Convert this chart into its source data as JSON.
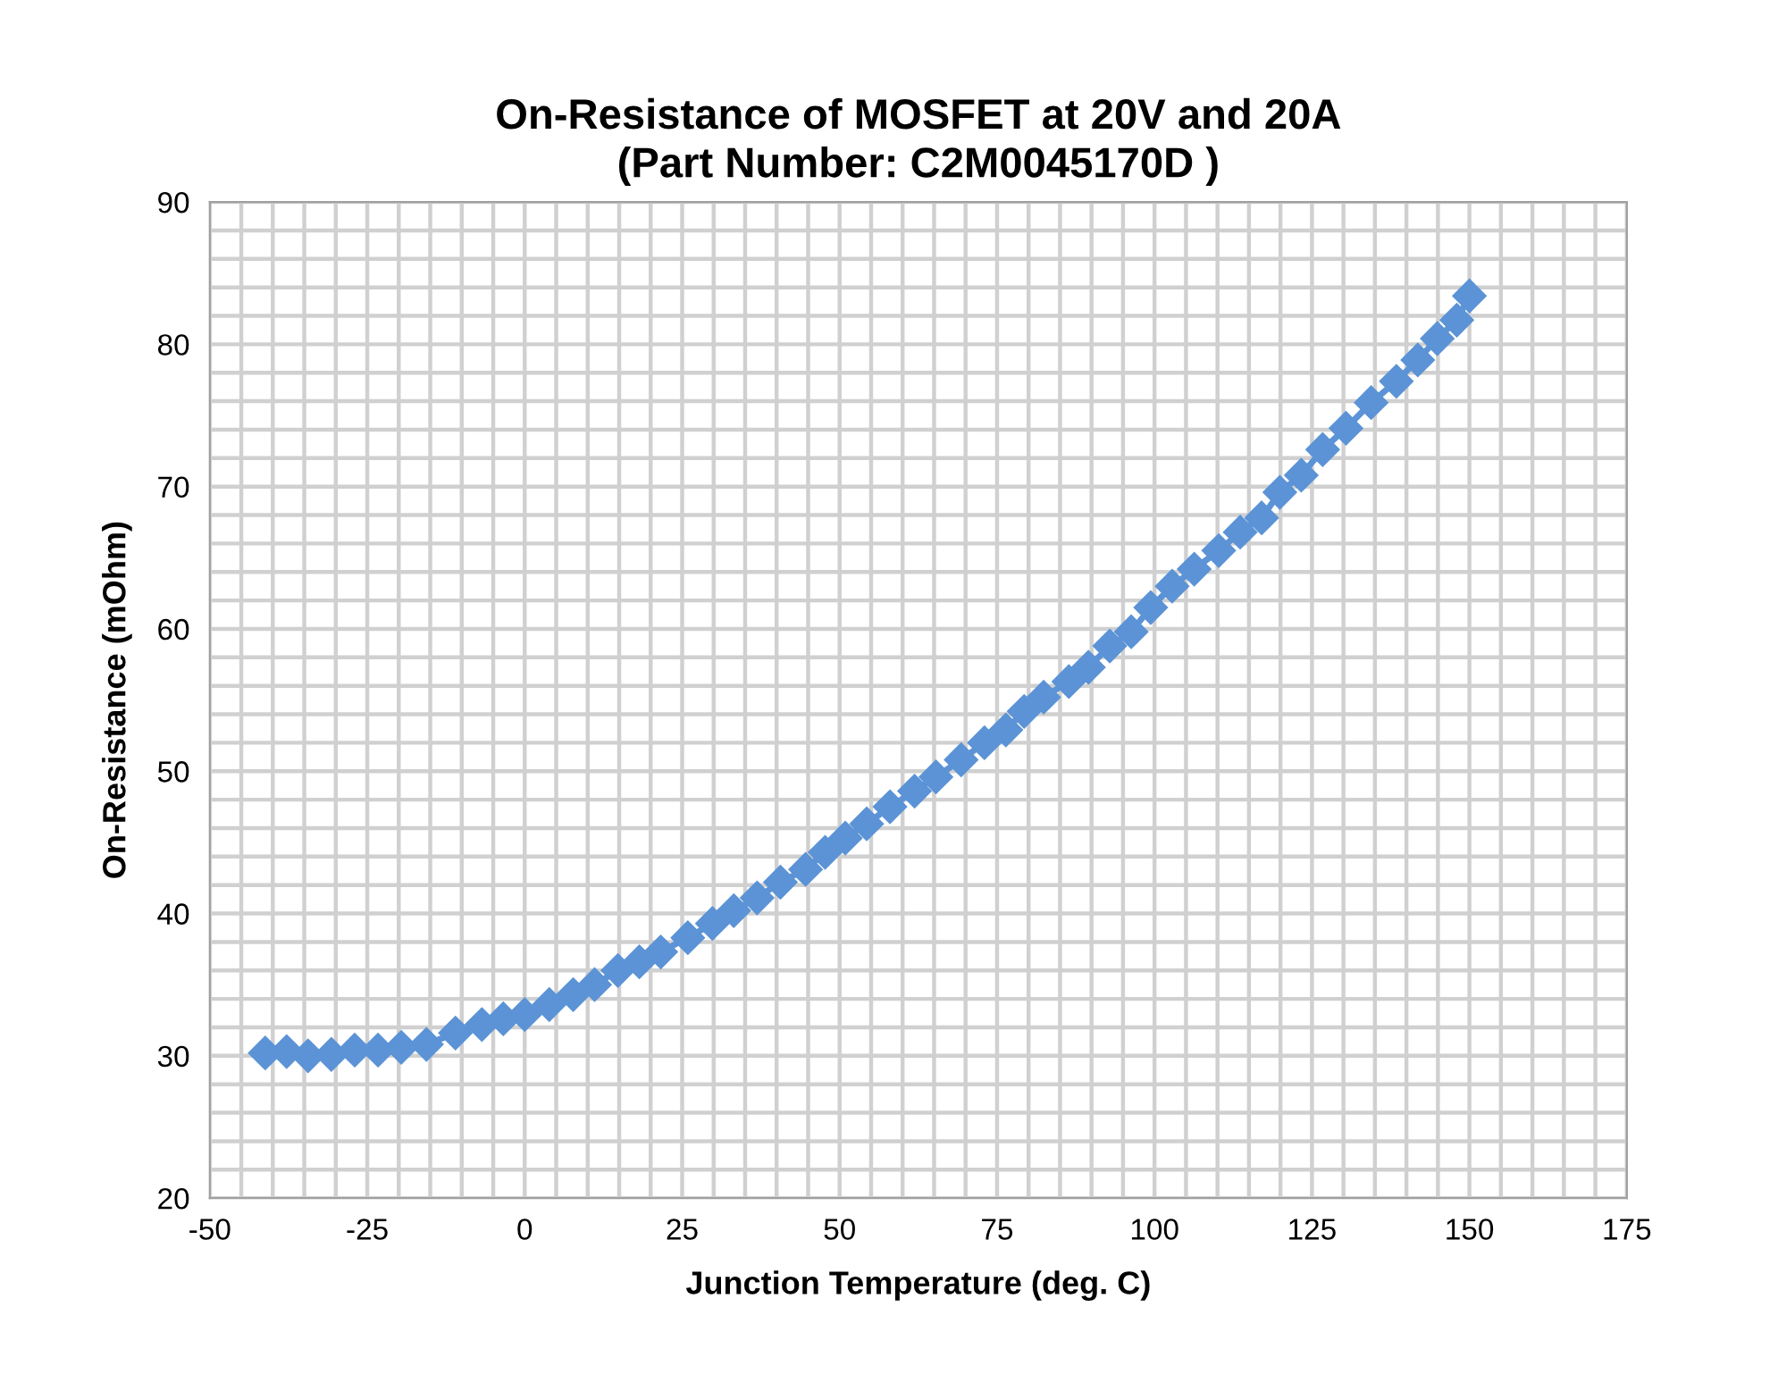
{
  "chart_data": {
    "type": "line",
    "title": "On-Resistance of MOSFET at 20V and 20A\n(Part Number: C2M0045170D )",
    "xlabel": "Junction Temperature (deg. C)",
    "ylabel": "On-Resistance (mOhm)",
    "series": [
      {
        "color": "#5b93d6",
        "x": [
          -41.2,
          -37.8,
          -34.4,
          -30.7,
          -27,
          -23.3,
          -19.6,
          -15.6,
          -11,
          -6.8,
          -3.4,
          0,
          3.9,
          7.7,
          11.1,
          14.8,
          18.2,
          21.6,
          25.9,
          29.8,
          33.2,
          36.9,
          40.6,
          44.6,
          47.7,
          50.9,
          54.3,
          58,
          61.9,
          65.3,
          69.3,
          73,
          76.4,
          79.3,
          82.4,
          86.4,
          89.5,
          92.9,
          96.3,
          99.4,
          102.8,
          106.3,
          110.2,
          113.6,
          117,
          119.9,
          123.3,
          126.7,
          130.4,
          134.4,
          138.4,
          141.8,
          144.9,
          148,
          150
        ],
        "values": [
          30.2,
          30.3,
          30.0,
          30.1,
          30.4,
          30.4,
          30.6,
          30.8,
          31.6,
          32.2,
          32.6,
          32.9,
          33.6,
          34.3,
          35.0,
          36.0,
          36.6,
          37.3,
          38.3,
          39.3,
          40.2,
          41.1,
          42.2,
          43.1,
          44.3,
          45.3,
          46.3,
          47.5,
          48.6,
          49.6,
          50.8,
          52.0,
          52.9,
          54.2,
          55.2,
          56.3,
          57.3,
          58.8,
          59.8,
          61.5,
          63.0,
          64.2,
          65.5,
          66.8,
          67.8,
          69.6,
          70.8,
          72.6,
          74.1,
          75.9,
          77.4,
          78.9,
          80.4,
          81.7,
          83.4
        ]
      }
    ],
    "xlim": [
      -50,
      175
    ],
    "xticks": [
      -50,
      {
        "value": -45,
        "label": null
      },
      {
        "value": -40,
        "label": null
      },
      {
        "value": -35,
        "label": null
      },
      {
        "value": -30,
        "label": null
      },
      -25,
      {
        "value": -20,
        "label": null
      },
      {
        "value": -15,
        "label": null
      },
      {
        "value": -10,
        "label": null
      },
      {
        "value": -5,
        "label": null
      },
      0,
      {
        "value": 5,
        "label": null
      },
      {
        "value": 10,
        "label": null
      },
      {
        "value": 15,
        "label": null
      },
      {
        "value": 20,
        "label": null
      },
      25,
      {
        "value": 30,
        "label": null
      },
      {
        "value": 35,
        "label": null
      },
      {
        "value": 40,
        "label": null
      },
      {
        "value": 45,
        "label": null
      },
      50,
      {
        "value": 55,
        "label": null
      },
      {
        "value": 60,
        "label": null
      },
      {
        "value": 65,
        "label": null
      },
      {
        "value": 70,
        "label": null
      },
      75,
      {
        "value": 80,
        "label": null
      },
      {
        "value": 85,
        "label": null
      },
      {
        "value": 90,
        "label": null
      },
      {
        "value": 95,
        "label": null
      },
      100,
      {
        "value": 105,
        "label": null
      },
      {
        "value": 110,
        "label": null
      },
      {
        "value": 115,
        "label": null
      },
      {
        "value": 120,
        "label": null
      },
      125,
      {
        "value": 130,
        "label": null
      },
      {
        "value": 135,
        "label": null
      },
      {
        "value": 140,
        "label": null
      },
      {
        "value": 145,
        "label": null
      },
      150,
      {
        "value": 155,
        "label": null
      },
      {
        "value": 160,
        "label": null
      },
      {
        "value": 165,
        "label": null
      },
      {
        "value": 170,
        "label": null
      },
      175
    ],
    "ylim": [
      20,
      90
    ],
    "yticks": [
      20,
      {
        "value": 22,
        "label": null
      },
      {
        "value": 24,
        "label": null
      },
      {
        "value": 26,
        "label": null
      },
      {
        "value": 28,
        "label": null
      },
      30,
      {
        "value": 32,
        "label": null
      },
      {
        "value": 34,
        "label": null
      },
      {
        "value": 36,
        "label": null
      },
      {
        "value": 38,
        "label": null
      },
      40,
      {
        "value": 42,
        "label": null
      },
      {
        "value": 44,
        "label": null
      },
      {
        "value": 46,
        "label": null
      },
      {
        "value": 48,
        "label": null
      },
      50,
      {
        "value": 52,
        "label": null
      },
      {
        "value": 54,
        "label": null
      },
      {
        "value": 56,
        "label": null
      },
      {
        "value": 58,
        "label": null
      },
      60,
      {
        "value": 62,
        "label": null
      },
      {
        "value": 64,
        "label": null
      },
      {
        "value": 66,
        "label": null
      },
      {
        "value": 68,
        "label": null
      },
      70,
      {
        "value": 72,
        "label": null
      },
      {
        "value": 74,
        "label": null
      },
      {
        "value": 76,
        "label": null
      },
      {
        "value": 78,
        "label": null
      },
      80,
      {
        "value": 82,
        "label": null
      },
      {
        "value": 84,
        "label": null
      },
      {
        "value": 86,
        "label": null
      },
      {
        "value": 88,
        "label": null
      },
      90
    ],
    "grid": true,
    "marker": "diamond",
    "line_style": "solid"
  }
}
